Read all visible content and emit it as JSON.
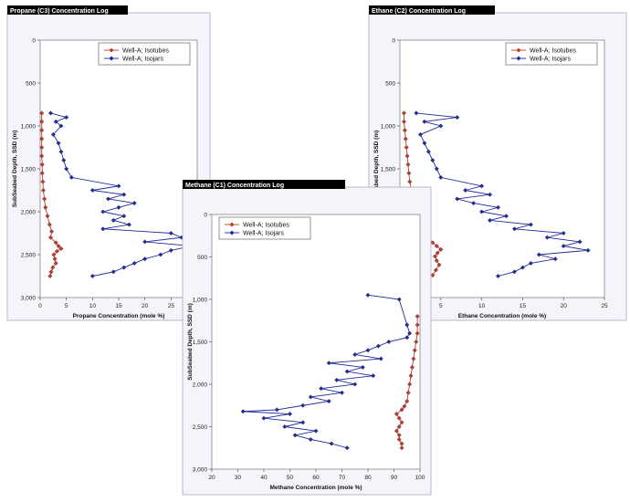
{
  "chart_data": [
    {
      "id": "propane",
      "type": "scatter",
      "title": "Propane (C3) Concentration Log",
      "xlabel": "Propane Concentration (mole %)",
      "ylabel": "SubSeabed Depth, SSD (m)",
      "xlim": [
        0,
        30
      ],
      "ylim": [
        3000,
        0
      ],
      "x_ticks": [
        "0",
        "5",
        "10",
        "15",
        "20",
        "25"
      ],
      "x_tick_values": [
        0,
        5,
        10,
        15,
        20,
        25
      ],
      "y_ticks": [
        "0",
        "500",
        "1,000",
        "1,500",
        "2,000",
        "2,500",
        "3,000"
      ],
      "y_tick_values": [
        0,
        500,
        1000,
        1500,
        2000,
        2500,
        3000
      ],
      "legend_position": "top-right",
      "series": [
        {
          "name": "Well-A; Isotubes",
          "color": "#c0392b",
          "marker": "diamond",
          "points": [
            [
              0.3,
              850
            ],
            [
              0.3,
              950
            ],
            [
              0.3,
              1050
            ],
            [
              0.3,
              1150
            ],
            [
              0.3,
              1250
            ],
            [
              0.3,
              1350
            ],
            [
              0.4,
              1450
            ],
            [
              0.4,
              1550
            ],
            [
              0.5,
              1650
            ],
            [
              0.6,
              1750
            ],
            [
              0.8,
              1850
            ],
            [
              1.0,
              1950
            ],
            [
              1.4,
              2050
            ],
            [
              1.8,
              2150
            ],
            [
              2.2,
              2230
            ],
            [
              2.0,
              2300
            ],
            [
              3.0,
              2360
            ],
            [
              3.5,
              2400
            ],
            [
              4.0,
              2430
            ],
            [
              3.2,
              2460
            ],
            [
              2.6,
              2500
            ],
            [
              2.8,
              2550
            ],
            [
              3.0,
              2600
            ],
            [
              2.4,
              2650
            ],
            [
              2.1,
              2700
            ],
            [
              1.9,
              2750
            ]
          ]
        },
        {
          "name": "Well-A; Isojars",
          "color": "#1f2a9e",
          "marker": "diamond",
          "points": [
            [
              2,
              850
            ],
            [
              5,
              900
            ],
            [
              3,
              950
            ],
            [
              4,
              1000
            ],
            [
              2.5,
              1100
            ],
            [
              3.5,
              1200
            ],
            [
              4,
              1300
            ],
            [
              4.5,
              1400
            ],
            [
              5,
              1500
            ],
            [
              6,
              1600
            ],
            [
              15,
              1700
            ],
            [
              10,
              1750
            ],
            [
              16,
              1800
            ],
            [
              13,
              1850
            ],
            [
              18,
              1900
            ],
            [
              15,
              1950
            ],
            [
              12,
              2000
            ],
            [
              16,
              2050
            ],
            [
              14,
              2100
            ],
            [
              17,
              2150
            ],
            [
              12,
              2200
            ],
            [
              25,
              2250
            ],
            [
              27,
              2300
            ],
            [
              20,
              2350
            ],
            [
              29,
              2400
            ],
            [
              25,
              2450
            ],
            [
              23,
              2500
            ],
            [
              20,
              2550
            ],
            [
              18,
              2600
            ],
            [
              16,
              2650
            ],
            [
              14,
              2700
            ],
            [
              10,
              2750
            ]
          ]
        }
      ]
    },
    {
      "id": "ethane",
      "type": "scatter",
      "title": "Ethane (C2) Concentration Log",
      "xlabel": "Ethane Concentration (mole %)",
      "ylabel": "SubSeabed Depth, SSD (m)",
      "xlim": [
        0,
        25
      ],
      "ylim": [
        3000,
        0
      ],
      "x_ticks": [
        "0",
        "5",
        "10",
        "15",
        "20",
        "25"
      ],
      "x_tick_values": [
        0,
        5,
        10,
        15,
        20,
        25
      ],
      "y_ticks": [
        "0",
        "500",
        "1,000",
        "1,500",
        "2,000",
        "2,500",
        "3,000"
      ],
      "y_tick_values": [
        0,
        500,
        1000,
        1500,
        2000,
        2500,
        3000
      ],
      "legend_position": "top-right",
      "series": [
        {
          "name": "Well-A; Isotubes",
          "color": "#c0392b",
          "marker": "diamond",
          "points": [
            [
              0.5,
              850
            ],
            [
              0.5,
              950
            ],
            [
              0.6,
              1050
            ],
            [
              0.7,
              1150
            ],
            [
              0.8,
              1250
            ],
            [
              0.9,
              1350
            ],
            [
              1.0,
              1450
            ],
            [
              1.1,
              1550
            ],
            [
              1.2,
              1650
            ],
            [
              1.4,
              1750
            ],
            [
              1.7,
              1850
            ],
            [
              2.0,
              1950
            ],
            [
              2.4,
              2050
            ],
            [
              2.8,
              2150
            ],
            [
              3.2,
              2230
            ],
            [
              3.5,
              2300
            ],
            [
              4.0,
              2360
            ],
            [
              4.5,
              2400
            ],
            [
              5.0,
              2440
            ],
            [
              4.6,
              2480
            ],
            [
              4.3,
              2520
            ],
            [
              4.5,
              2570
            ],
            [
              4.8,
              2620
            ],
            [
              4.4,
              2680
            ],
            [
              4.0,
              2740
            ]
          ]
        },
        {
          "name": "Well-A; Isojars",
          "color": "#1f2a9e",
          "marker": "diamond",
          "points": [
            [
              2,
              850
            ],
            [
              7,
              900
            ],
            [
              3,
              950
            ],
            [
              5,
              1000
            ],
            [
              2.5,
              1100
            ],
            [
              3,
              1200
            ],
            [
              3.5,
              1300
            ],
            [
              4,
              1400
            ],
            [
              4.5,
              1500
            ],
            [
              5,
              1600
            ],
            [
              10,
              1700
            ],
            [
              8,
              1750
            ],
            [
              11,
              1800
            ],
            [
              7,
              1850
            ],
            [
              9,
              1900
            ],
            [
              12,
              1950
            ],
            [
              10,
              2000
            ],
            [
              13,
              2050
            ],
            [
              11,
              2100
            ],
            [
              16,
              2150
            ],
            [
              14,
              2200
            ],
            [
              20,
              2250
            ],
            [
              18,
              2300
            ],
            [
              22,
              2350
            ],
            [
              20,
              2400
            ],
            [
              23,
              2450
            ],
            [
              17,
              2500
            ],
            [
              19,
              2550
            ],
            [
              16,
              2600
            ],
            [
              15,
              2650
            ],
            [
              14,
              2700
            ],
            [
              12,
              2750
            ]
          ]
        }
      ]
    },
    {
      "id": "methane",
      "type": "scatter",
      "title": "Methane (C1) Concentration  Log",
      "xlabel": "Methane Concentration (mole %)",
      "ylabel": "SubSeabed Depth, SSD (m)",
      "xlim": [
        20,
        100
      ],
      "ylim": [
        3000,
        0
      ],
      "x_ticks": [
        "20",
        "30",
        "40",
        "50",
        "60",
        "70",
        "80",
        "90",
        "100"
      ],
      "x_tick_values": [
        20,
        30,
        40,
        50,
        60,
        70,
        80,
        90,
        100
      ],
      "y_ticks": [
        "0",
        "500",
        "1,000",
        "1,500",
        "2,000",
        "2,500",
        "3,000"
      ],
      "y_tick_values": [
        0,
        500,
        1000,
        1500,
        2000,
        2500,
        3000
      ],
      "legend_position": "top-left",
      "series": [
        {
          "name": "Well-A; Isotubes",
          "color": "#c0392b",
          "marker": "diamond",
          "points": [
            [
              99,
              1200
            ],
            [
              99,
              1300
            ],
            [
              99,
              1400
            ],
            [
              98.5,
              1500
            ],
            [
              98,
              1600
            ],
            [
              97.5,
              1700
            ],
            [
              97,
              1800
            ],
            [
              96.5,
              1900
            ],
            [
              96,
              2000
            ],
            [
              95.5,
              2100
            ],
            [
              95,
              2200
            ],
            [
              94,
              2260
            ],
            [
              93,
              2300
            ],
            [
              91,
              2350
            ],
            [
              92,
              2400
            ],
            [
              93,
              2450
            ],
            [
              92,
              2500
            ],
            [
              91,
              2550
            ],
            [
              92,
              2600
            ],
            [
              92,
              2650
            ],
            [
              93,
              2700
            ],
            [
              93,
              2750
            ]
          ]
        },
        {
          "name": "Well-A; Isojars",
          "color": "#1f2a9e",
          "marker": "diamond",
          "points": [
            [
              80,
              950
            ],
            [
              92,
              1000
            ],
            [
              95,
              1300
            ],
            [
              96,
              1400
            ],
            [
              95,
              1450
            ],
            [
              88,
              1500
            ],
            [
              84,
              1550
            ],
            [
              80,
              1600
            ],
            [
              75,
              1650
            ],
            [
              85,
              1700
            ],
            [
              65,
              1750
            ],
            [
              78,
              1800
            ],
            [
              72,
              1850
            ],
            [
              82,
              1900
            ],
            [
              68,
              1950
            ],
            [
              75,
              2000
            ],
            [
              62,
              2050
            ],
            [
              70,
              2100
            ],
            [
              58,
              2150
            ],
            [
              65,
              2200
            ],
            [
              55,
              2250
            ],
            [
              45,
              2300
            ],
            [
              32,
              2320
            ],
            [
              50,
              2350
            ],
            [
              40,
              2400
            ],
            [
              55,
              2450
            ],
            [
              48,
              2500
            ],
            [
              60,
              2550
            ],
            [
              52,
              2600
            ],
            [
              58,
              2650
            ],
            [
              66,
              2700
            ],
            [
              72,
              2750
            ]
          ]
        }
      ]
    }
  ]
}
